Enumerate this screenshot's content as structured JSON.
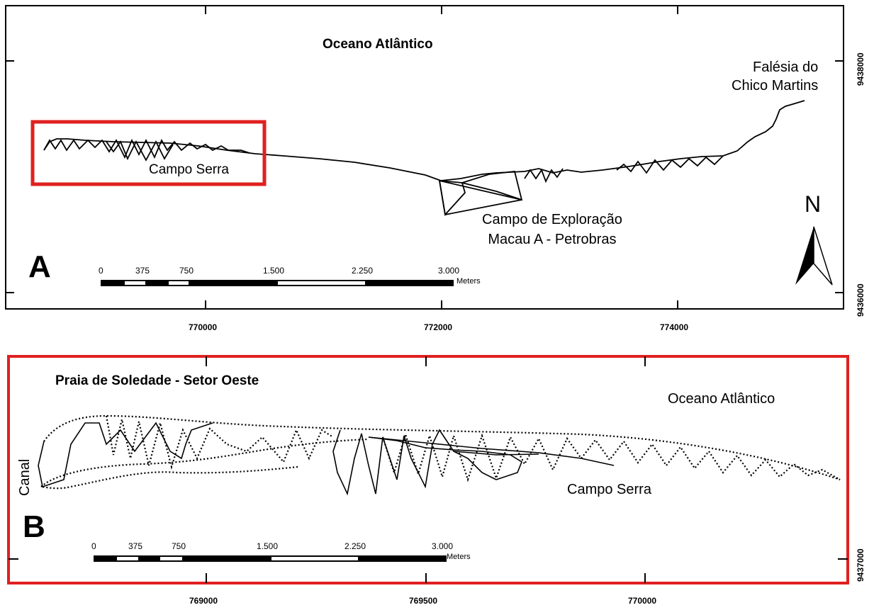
{
  "panel_a": {
    "letter": "A",
    "ocean_label": "Oceano Atlântico",
    "cliff_label_line1": "Falésia do",
    "cliff_label_line2": "Chico Martins",
    "site_label": "Campo Serra",
    "field_label_line1": "Campo de Exploração",
    "field_label_line2": "Macau A - Petrobras",
    "north_label": "N",
    "scalebar": {
      "ticks": [
        "0",
        "375",
        "750",
        "1.500",
        "2.250",
        "3.000"
      ],
      "unit": "Meters"
    },
    "x_ticks": [
      "770000",
      "772000",
      "774000"
    ],
    "y_ticks": [
      "9438000",
      "9436000"
    ],
    "highlight_color": "#e02020"
  },
  "panel_b": {
    "letter": "B",
    "title": "Praia de Soledade - Setor Oeste",
    "ocean_label": "Oceano Atlântico",
    "site_label": "Campo Serra",
    "canal_label": "Canal",
    "scalebar": {
      "ticks": [
        "0",
        "375",
        "750",
        "1.500",
        "2.250",
        "3.000"
      ],
      "unit": "Meters"
    },
    "x_ticks": [
      "769000",
      "769500",
      "770000"
    ],
    "y_ticks": [
      "9437000"
    ],
    "frame_color": "#e02020"
  }
}
